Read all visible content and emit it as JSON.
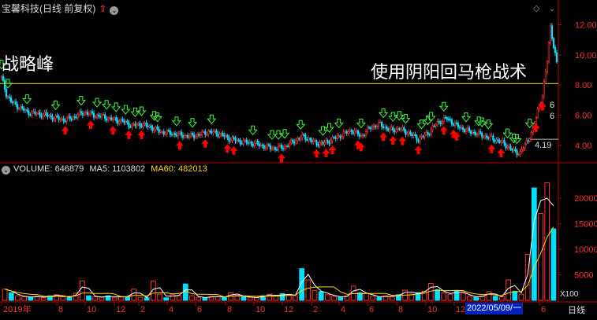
{
  "header": {
    "title": "宝馨科技(日线 前复权)",
    "up_arrow_icon": "red-up-arrow-icon",
    "toggle_icon": "chevron-down-circle-icon"
  },
  "annotations": {
    "left": "战略峰",
    "right": "使用阴阳回马枪战术"
  },
  "volume_legend": {
    "volume": "VOLUME: 646879",
    "ma5": "MA5: 1103802",
    "ma60": "MA60: 482013"
  },
  "footer": {
    "x100": "X100",
    "date_box": "2022/05/09/一",
    "period": "日线"
  },
  "price_marks": {
    "low_label": "4.19",
    "side_label_1": "6",
    "side_label_2": "6"
  },
  "chart_data": [
    {
      "type": "candlestick",
      "title": "宝馨科技(日线 前复权)",
      "y_ticks": [
        4.0,
        6.0,
        8.0,
        10.0,
        12.0
      ],
      "ylim": [
        3.0,
        12.6
      ],
      "reference_line": 8.1,
      "colors": {
        "up": "#ff3030",
        "down": "#00e0ff",
        "ref": "#ffe600"
      },
      "x_tick_labels": [
        "2019年",
        "8",
        "10",
        "12",
        "2",
        "4",
        "6",
        "8",
        "10",
        "12",
        "2",
        "4",
        "6",
        "8",
        "10",
        "12",
        "2022/05/09/一",
        "6"
      ],
      "close_path": [
        [
          0,
          8.5
        ],
        [
          3,
          7.4
        ],
        [
          6,
          6.9
        ],
        [
          10,
          6.6
        ],
        [
          16,
          6.2
        ],
        [
          22,
          6.1
        ],
        [
          28,
          6.0
        ],
        [
          34,
          5.8
        ],
        [
          40,
          5.7
        ],
        [
          46,
          5.9
        ],
        [
          52,
          6.2
        ],
        [
          58,
          6.0
        ],
        [
          64,
          5.9
        ],
        [
          70,
          5.7
        ],
        [
          76,
          5.6
        ],
        [
          82,
          5.3
        ],
        [
          88,
          5.4
        ],
        [
          94,
          5.2
        ],
        [
          100,
          4.9
        ],
        [
          106,
          4.8
        ],
        [
          112,
          4.7
        ],
        [
          118,
          4.6
        ],
        [
          124,
          4.7
        ],
        [
          130,
          4.9
        ],
        [
          136,
          4.8
        ],
        [
          142,
          4.5
        ],
        [
          148,
          4.3
        ],
        [
          154,
          4.2
        ],
        [
          160,
          4.1
        ],
        [
          166,
          3.9
        ],
        [
          172,
          3.8
        ],
        [
          178,
          3.9
        ],
        [
          184,
          4.3
        ],
        [
          190,
          4.6
        ],
        [
          196,
          4.2
        ],
        [
          202,
          4.1
        ],
        [
          208,
          4.4
        ],
        [
          214,
          4.7
        ],
        [
          220,
          5.0
        ],
        [
          226,
          4.6
        ],
        [
          232,
          5.2
        ],
        [
          238,
          5.4
        ],
        [
          244,
          5.0
        ],
        [
          250,
          5.1
        ],
        [
          256,
          4.8
        ],
        [
          262,
          4.4
        ],
        [
          268,
          4.8
        ],
        [
          274,
          5.5
        ],
        [
          280,
          5.8
        ],
        [
          286,
          5.3
        ],
        [
          292,
          5.0
        ],
        [
          298,
          4.8
        ],
        [
          304,
          4.6
        ],
        [
          310,
          4.4
        ],
        [
          316,
          4.1
        ],
        [
          322,
          3.6
        ],
        [
          326,
          3.5
        ],
        [
          330,
          4.2
        ],
        [
          334,
          5.0
        ],
        [
          337,
          6.3
        ],
        [
          340,
          7.3
        ],
        [
          343,
          9.6
        ],
        [
          345,
          11.9
        ],
        [
          347,
          10.6
        ],
        [
          349,
          9.4
        ]
      ],
      "sell_signals": [
        40,
        56,
        70,
        80,
        88,
        112,
        128,
        142,
        146,
        176,
        198,
        204,
        208,
        224,
        226,
        240,
        246,
        252,
        262,
        278,
        284,
        286,
        308,
        314,
        336,
        340
      ],
      "buy_signals": [
        0,
        4,
        16,
        34,
        50,
        60,
        66,
        72,
        78,
        84,
        88,
        96,
        98,
        110,
        120,
        132,
        158,
        170,
        174,
        178,
        188,
        202,
        206,
        212,
        226,
        240,
        246,
        250,
        254,
        264,
        268,
        270,
        278,
        292,
        300,
        302,
        306,
        318,
        322,
        324,
        332
      ]
    },
    {
      "type": "bar",
      "title": "VOLUME",
      "y_ticks": [
        5000,
        10000,
        15000,
        20000
      ],
      "ylim": [
        0,
        24000
      ],
      "units_label": "X100",
      "series": [
        {
          "name": "VOLUME",
          "values": [
            2200,
            1500,
            900,
            700,
            600,
            800,
            500,
            900,
            1100,
            700,
            600,
            1400,
            3800,
            900,
            700,
            600,
            900,
            500,
            800,
            700,
            2200,
            600,
            500,
            3800,
            1200,
            500,
            1100,
            900,
            3200,
            900,
            600,
            500,
            800,
            700,
            600,
            1500,
            1000,
            700,
            600,
            500,
            900,
            1200,
            800,
            1300,
            1100,
            900,
            6200,
            4000,
            1900,
            1700,
            1100,
            800,
            600,
            900,
            2800,
            1500,
            1400,
            800,
            600,
            900,
            700,
            1100,
            2000,
            1200,
            1500,
            1800,
            3300,
            2100,
            1500,
            1200,
            1900,
            1400,
            800,
            600,
            900,
            1700,
            800,
            700,
            4000,
            1800,
            1200,
            9000,
            22000,
            17000,
            23000,
            14000
          ]
        },
        {
          "name": "MA5",
          "values": []
        },
        {
          "name": "MA60",
          "values": []
        }
      ]
    }
  ]
}
